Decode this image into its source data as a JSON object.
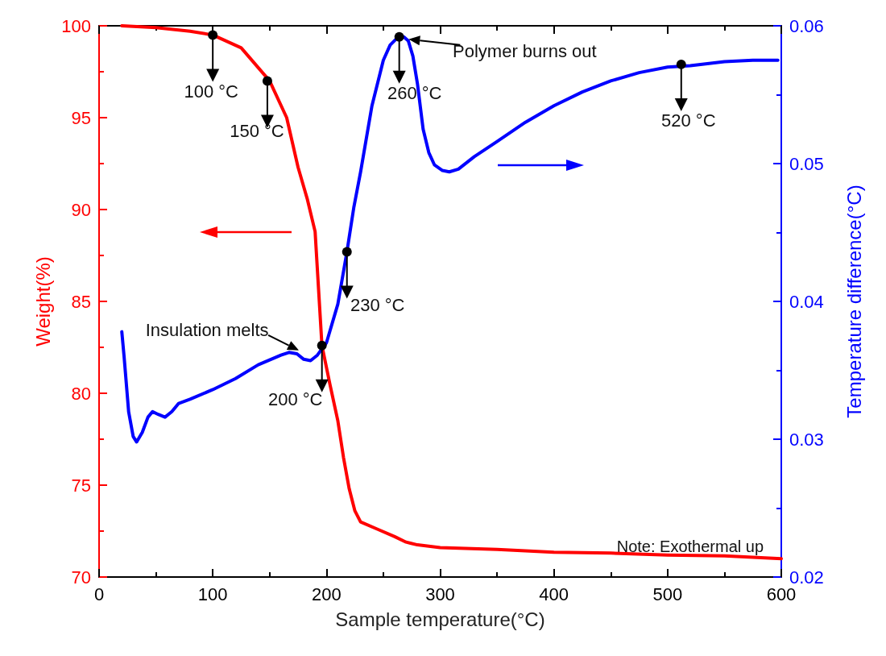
{
  "chart_data": {
    "type": "line",
    "xlabel": "Sample temperature(°C)",
    "ylabel": "Weight(%)",
    "y2label": "Temperature difference(°C)",
    "xlim": [
      0,
      600
    ],
    "xticks": [
      0,
      100,
      200,
      300,
      400,
      500,
      600
    ],
    "ylim": [
      70,
      100
    ],
    "yticks": [
      70,
      75,
      80,
      85,
      90,
      95,
      100
    ],
    "y2lim": [
      0.02,
      0.06
    ],
    "y2ticks": [
      {
        "value": 0.02,
        "label": "0.02"
      },
      {
        "value": 0.03,
        "label": "0.03"
      },
      {
        "value": 0.04,
        "label": "0.04"
      },
      {
        "value": 0.05,
        "label": "0.05"
      },
      {
        "value": 0.06,
        "label": "0.06"
      }
    ],
    "grid": false,
    "marker": "none",
    "line_style": "solid",
    "series": [
      {
        "color": "#ff0000",
        "axis": "y",
        "x": [
          20,
          50,
          80,
          100,
          125,
          150,
          165,
          175,
          183,
          190,
          196,
          203,
          210,
          215,
          220,
          225,
          230,
          245,
          260,
          270,
          280,
          300,
          350,
          400,
          450,
          500,
          550,
          600
        ],
        "values": [
          100,
          99.9,
          99.7,
          99.5,
          98.8,
          97.0,
          95.0,
          92.3,
          90.6,
          88.8,
          82.6,
          80.5,
          78.5,
          76.5,
          74.8,
          73.6,
          73.0,
          72.6,
          72.2,
          71.9,
          71.75,
          71.6,
          71.5,
          71.35,
          71.3,
          71.2,
          71.15,
          71.0
        ]
      },
      {
        "color": "#0000ff",
        "axis": "y2",
        "x": [
          20,
          22,
          26,
          30,
          33,
          38,
          43,
          47,
          52,
          58,
          64,
          70,
          80,
          100,
          120,
          140,
          160,
          167,
          174,
          180,
          186,
          192,
          200,
          210,
          218,
          224,
          230,
          240,
          250,
          256,
          262,
          268,
          272,
          276,
          280,
          285,
          290,
          295,
          302,
          308,
          316,
          330,
          350,
          375,
          400,
          425,
          450,
          475,
          500,
          520,
          550,
          575,
          597
        ],
        "values": [
          0.0378,
          0.036,
          0.032,
          0.0302,
          0.0298,
          0.0305,
          0.0316,
          0.032,
          0.0318,
          0.0316,
          0.032,
          0.0326,
          0.0329,
          0.0336,
          0.0344,
          0.0354,
          0.0361,
          0.0363,
          0.0362,
          0.0358,
          0.0357,
          0.0361,
          0.037,
          0.0398,
          0.0436,
          0.0468,
          0.0494,
          0.0542,
          0.0575,
          0.0586,
          0.0591,
          0.0592,
          0.0589,
          0.0578,
          0.0558,
          0.0525,
          0.0508,
          0.0499,
          0.0495,
          0.0494,
          0.0496,
          0.0505,
          0.0516,
          0.053,
          0.0542,
          0.0552,
          0.056,
          0.0566,
          0.057,
          0.0571,
          0.0574,
          0.0575,
          0.0575
        ]
      }
    ],
    "annotations": [
      {
        "text": "100 °C",
        "x": 100,
        "y": 99.5
      },
      {
        "text": "150 °C",
        "x": 148,
        "y": 97.0
      },
      {
        "text": "200 °C",
        "x": 196,
        "y": 82.6
      },
      {
        "text": "230 °C",
        "x": 218,
        "y": 87.7
      },
      {
        "text": "260 °C",
        "x": 264,
        "y": 99.4
      },
      {
        "text": "520 °C",
        "x": 512,
        "y": 97.9
      },
      {
        "text": "Polymer burns out",
        "x": 268,
        "y": 99.4
      },
      {
        "text": "Insulation melts",
        "x": 180,
        "y": 82.2
      },
      "Note: Exothermal up"
    ]
  }
}
